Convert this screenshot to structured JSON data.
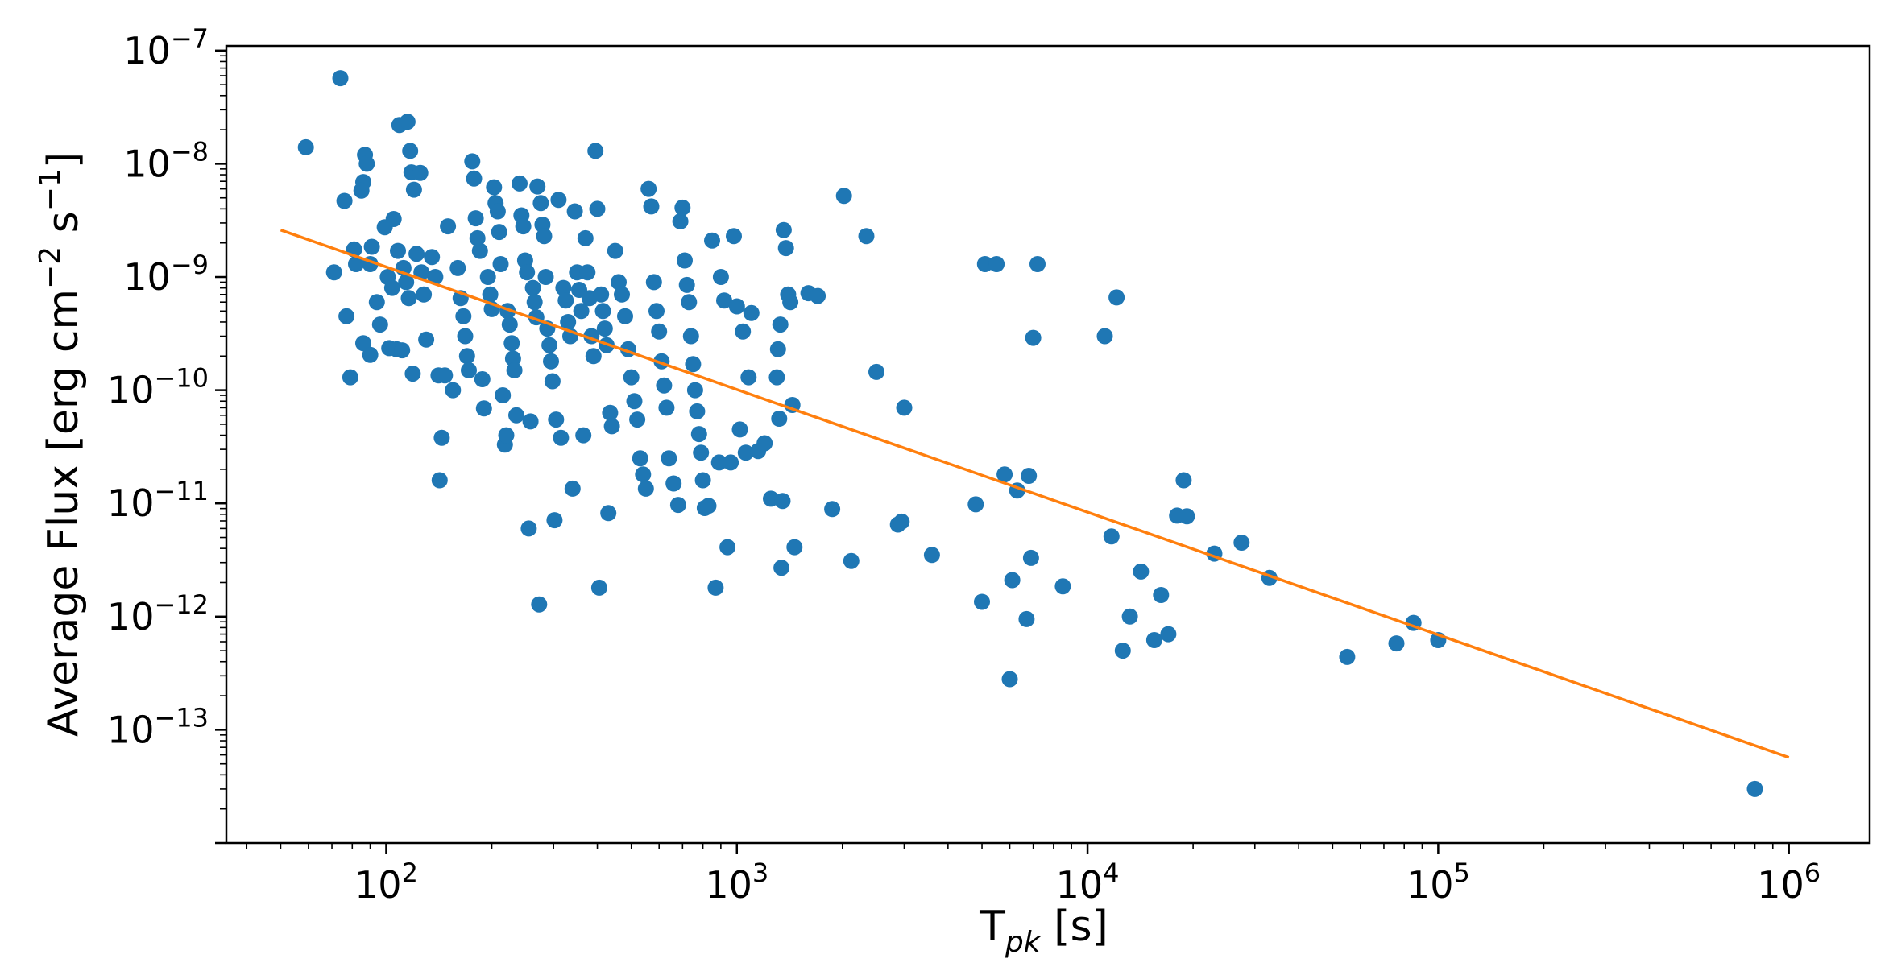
{
  "chart_data": {
    "type": "scatter",
    "title": "",
    "xlabel": "T_pk [s]",
    "ylabel": "Average Flux [erg cm^-2 s^-1]",
    "xscale": "log",
    "yscale": "log",
    "xlim": [
      35,
      1700000
    ],
    "ylim": [
      1e-14,
      1.1e-07
    ],
    "x_ticks": [
      {
        "value": 100,
        "base": "10",
        "exp": "2"
      },
      {
        "value": 1000,
        "base": "10",
        "exp": "3"
      },
      {
        "value": 10000,
        "base": "10",
        "exp": "4"
      },
      {
        "value": 100000,
        "base": "10",
        "exp": "5"
      },
      {
        "value": 1000000,
        "base": "10",
        "exp": "6"
      }
    ],
    "y_ticks": [
      {
        "value": 1e-13,
        "base": "10",
        "exp": "−13"
      },
      {
        "value": 1e-12,
        "base": "10",
        "exp": "−12"
      },
      {
        "value": 1e-11,
        "base": "10",
        "exp": "−11"
      },
      {
        "value": 1e-10,
        "base": "10",
        "exp": "−10"
      },
      {
        "value": 1e-09,
        "base": "10",
        "exp": "−9"
      },
      {
        "value": 1e-08,
        "base": "10",
        "exp": "−8"
      },
      {
        "value": 1e-07,
        "base": "10",
        "exp": "−7"
      }
    ],
    "grid": false,
    "legend": "none",
    "colors": {
      "points": "#1f77b4",
      "fit": "#ff7f0e"
    },
    "series": [
      {
        "type": "scatter",
        "points": [
          [
            74,
            5.7e-08
          ],
          [
            59,
            1.4e-08
          ],
          [
            76,
            4.7e-09
          ],
          [
            71,
            1.1e-09
          ],
          [
            77,
            4.5e-10
          ],
          [
            79,
            1.3e-10
          ],
          [
            87,
            1.2e-08
          ],
          [
            88,
            1e-08
          ],
          [
            86,
            6.9e-09
          ],
          [
            85,
            5.8e-09
          ],
          [
            81,
            1.75e-09
          ],
          [
            82,
            1.3e-09
          ],
          [
            86,
            2.6e-10
          ],
          [
            90,
            2.05e-10
          ],
          [
            90,
            1.3e-09
          ],
          [
            91,
            1.85e-09
          ],
          [
            94,
            6e-10
          ],
          [
            96,
            3.8e-10
          ],
          [
            99,
            2.75e-09
          ],
          [
            102,
            2.35e-10
          ],
          [
            105,
            3.25e-09
          ],
          [
            107,
            2.3e-10
          ],
          [
            109,
            2.2e-08
          ],
          [
            111,
            2.25e-10
          ],
          [
            115,
            2.35e-08
          ],
          [
            117,
            1.3e-08
          ],
          [
            118,
            8.4e-09
          ],
          [
            119,
            1.4e-10
          ],
          [
            120,
            5.9e-09
          ],
          [
            125,
            8.3e-09
          ],
          [
            101,
            1e-09
          ],
          [
            104,
            8e-10
          ],
          [
            108,
            1.7e-09
          ],
          [
            112,
            1.2e-09
          ],
          [
            114,
            9e-10
          ],
          [
            116,
            6.5e-10
          ],
          [
            122,
            1.6e-09
          ],
          [
            126,
            1.1e-09
          ],
          [
            128,
            7e-10
          ],
          [
            130,
            2.8e-10
          ],
          [
            135,
            1.5e-09
          ],
          [
            138,
            1e-09
          ],
          [
            141,
            1.35e-10
          ],
          [
            142,
            1.6e-11
          ],
          [
            144,
            3.8e-11
          ],
          [
            147,
            1.35e-10
          ],
          [
            150,
            2.8e-09
          ],
          [
            155,
            1e-10
          ],
          [
            160,
            1.2e-09
          ],
          [
            163,
            6.5e-10
          ],
          [
            166,
            4.5e-10
          ],
          [
            168,
            3e-10
          ],
          [
            170,
            2e-10
          ],
          [
            172,
            1.5e-10
          ],
          [
            176,
            1.05e-08
          ],
          [
            178,
            7.4e-09
          ],
          [
            180,
            3.3e-09
          ],
          [
            182,
            2.2e-09
          ],
          [
            185,
            1.7e-09
          ],
          [
            188,
            1.25e-10
          ],
          [
            190,
            6.9e-11
          ],
          [
            195,
            1e-09
          ],
          [
            198,
            7e-10
          ],
          [
            200,
            5.2e-10
          ],
          [
            203,
            6.2e-09
          ],
          [
            205,
            4.5e-09
          ],
          [
            208,
            3.8e-09
          ],
          [
            210,
            2.5e-09
          ],
          [
            212,
            1.3e-09
          ],
          [
            215,
            9e-11
          ],
          [
            218,
            3.3e-11
          ],
          [
            220,
            4e-11
          ],
          [
            222,
            5e-10
          ],
          [
            225,
            3.8e-10
          ],
          [
            228,
            2.6e-10
          ],
          [
            230,
            1.9e-10
          ],
          [
            232,
            1.5e-10
          ],
          [
            235,
            6e-11
          ],
          [
            240,
            6.7e-09
          ],
          [
            243,
            3.5e-09
          ],
          [
            246,
            2.8e-09
          ],
          [
            249,
            1.4e-09
          ],
          [
            252,
            1.1e-09
          ],
          [
            255,
            6e-12
          ],
          [
            258,
            5.3e-11
          ],
          [
            262,
            8e-10
          ],
          [
            265,
            6e-10
          ],
          [
            268,
            4.4e-10
          ],
          [
            270,
            6.3e-09
          ],
          [
            273,
            1.28e-12
          ],
          [
            276,
            4.5e-09
          ],
          [
            279,
            2.9e-09
          ],
          [
            282,
            2.3e-09
          ],
          [
            285,
            1e-09
          ],
          [
            288,
            3.5e-10
          ],
          [
            292,
            2.5e-10
          ],
          [
            295,
            1.8e-10
          ],
          [
            298,
            1.2e-10
          ],
          [
            302,
            7.1e-12
          ],
          [
            305,
            5.5e-11
          ],
          [
            310,
            4.8e-09
          ],
          [
            315,
            3.8e-11
          ],
          [
            320,
            8e-10
          ],
          [
            325,
            6.2e-10
          ],
          [
            330,
            4e-10
          ],
          [
            335,
            3e-10
          ],
          [
            340,
            1.35e-11
          ],
          [
            345,
            3.8e-09
          ],
          [
            350,
            1.1e-09
          ],
          [
            355,
            7.7e-10
          ],
          [
            360,
            5e-10
          ],
          [
            365,
            4e-11
          ],
          [
            370,
            2.2e-09
          ],
          [
            375,
            1.1e-09
          ],
          [
            380,
            6.5e-10
          ],
          [
            385,
            3e-10
          ],
          [
            390,
            2e-10
          ],
          [
            395,
            1.3e-08
          ],
          [
            400,
            4e-09
          ],
          [
            405,
            1.8e-12
          ],
          [
            410,
            7e-10
          ],
          [
            415,
            5e-10
          ],
          [
            420,
            3.5e-10
          ],
          [
            425,
            2.5e-10
          ],
          [
            430,
            8.2e-12
          ],
          [
            435,
            6.3e-11
          ],
          [
            440,
            4.8e-11
          ],
          [
            450,
            1.7e-09
          ],
          [
            460,
            9e-10
          ],
          [
            470,
            7e-10
          ],
          [
            480,
            4.5e-10
          ],
          [
            490,
            2.3e-10
          ],
          [
            500,
            1.3e-10
          ],
          [
            510,
            8e-11
          ],
          [
            520,
            5.5e-11
          ],
          [
            530,
            2.5e-11
          ],
          [
            540,
            1.8e-11
          ],
          [
            550,
            1.35e-11
          ],
          [
            560,
            6e-09
          ],
          [
            570,
            4.2e-09
          ],
          [
            580,
            9e-10
          ],
          [
            590,
            5e-10
          ],
          [
            600,
            3.3e-10
          ],
          [
            610,
            1.8e-10
          ],
          [
            620,
            1.1e-10
          ],
          [
            630,
            7e-11
          ],
          [
            640,
            2.5e-11
          ],
          [
            660,
            1.5e-11
          ],
          [
            680,
            9.7e-12
          ],
          [
            690,
            3.1e-09
          ],
          [
            700,
            4.1e-09
          ],
          [
            710,
            1.4e-09
          ],
          [
            720,
            8.5e-10
          ],
          [
            730,
            6e-10
          ],
          [
            740,
            3e-10
          ],
          [
            750,
            1.7e-10
          ],
          [
            760,
            1e-10
          ],
          [
            770,
            6.5e-11
          ],
          [
            780,
            4.1e-11
          ],
          [
            790,
            2.8e-11
          ],
          [
            800,
            1.6e-11
          ],
          [
            810,
            9.1e-12
          ],
          [
            830,
            9.5e-12
          ],
          [
            850,
            2.1e-09
          ],
          [
            870,
            1.8e-12
          ],
          [
            890,
            2.3e-11
          ],
          [
            900,
            1e-09
          ],
          [
            920,
            6.2e-10
          ],
          [
            940,
            4.1e-12
          ],
          [
            960,
            2.3e-11
          ],
          [
            980,
            2.3e-09
          ],
          [
            1000,
            5.5e-10
          ],
          [
            1020,
            4.5e-11
          ],
          [
            1040,
            3.3e-10
          ],
          [
            1060,
            2.8e-11
          ],
          [
            1080,
            1.3e-10
          ],
          [
            1100,
            4.8e-10
          ],
          [
            1150,
            2.9e-11
          ],
          [
            1200,
            3.4e-11
          ],
          [
            1250,
            1.1e-11
          ],
          [
            1300,
            1.3e-10
          ],
          [
            1320,
            5.6e-11
          ],
          [
            1340,
            2.7e-12
          ],
          [
            1360,
            2.6e-09
          ],
          [
            1380,
            1.8e-09
          ],
          [
            1400,
            7e-10
          ],
          [
            1420,
            6e-10
          ],
          [
            1440,
            7.4e-11
          ],
          [
            1460,
            4.1e-12
          ],
          [
            1350,
            1.05e-11
          ],
          [
            1330,
            3.8e-10
          ],
          [
            1310,
            2.3e-10
          ],
          [
            1600,
            7.2e-10
          ],
          [
            1700,
            6.8e-10
          ],
          [
            1870,
            8.9e-12
          ],
          [
            2020,
            5.2e-09
          ],
          [
            2120,
            3.1e-12
          ],
          [
            2340,
            2.3e-09
          ],
          [
            2500,
            1.45e-10
          ],
          [
            2880,
            6.5e-12
          ],
          [
            2950,
            6.9e-12
          ],
          [
            3000,
            7e-11
          ],
          [
            3600,
            3.5e-12
          ],
          [
            4800,
            9.8e-12
          ],
          [
            5000,
            1.35e-12
          ],
          [
            5100,
            1.3e-09
          ],
          [
            5500,
            1.3e-09
          ],
          [
            5800,
            1.8e-11
          ],
          [
            6000,
            2.8e-13
          ],
          [
            6100,
            2.1e-12
          ],
          [
            6300,
            1.3e-11
          ],
          [
            6700,
            9.5e-13
          ],
          [
            6800,
            1.75e-11
          ],
          [
            6900,
            3.3e-12
          ],
          [
            7000,
            2.9e-10
          ],
          [
            7200,
            1.3e-09
          ],
          [
            8500,
            1.85e-12
          ],
          [
            11200,
            3e-10
          ],
          [
            11700,
            5.1e-12
          ],
          [
            12100,
            6.6e-10
          ],
          [
            12600,
            5e-13
          ],
          [
            13200,
            1e-12
          ],
          [
            14200,
            2.5e-12
          ],
          [
            15500,
            6.2e-13
          ],
          [
            16200,
            1.55e-12
          ],
          [
            17000,
            7e-13
          ],
          [
            18000,
            7.8e-12
          ],
          [
            18800,
            1.6e-11
          ],
          [
            19200,
            7.7e-12
          ],
          [
            23000,
            3.6e-12
          ],
          [
            27500,
            4.5e-12
          ],
          [
            33000,
            2.2e-12
          ],
          [
            55000,
            4.4e-13
          ],
          [
            76000,
            5.8e-13
          ],
          [
            85000,
            8.8e-13
          ],
          [
            100000,
            6.2e-13
          ],
          [
            800000,
            3e-14
          ]
        ]
      },
      {
        "type": "line",
        "points": [
          [
            50,
            2.6e-09
          ],
          [
            1000000,
            5.7e-14
          ]
        ]
      }
    ]
  }
}
